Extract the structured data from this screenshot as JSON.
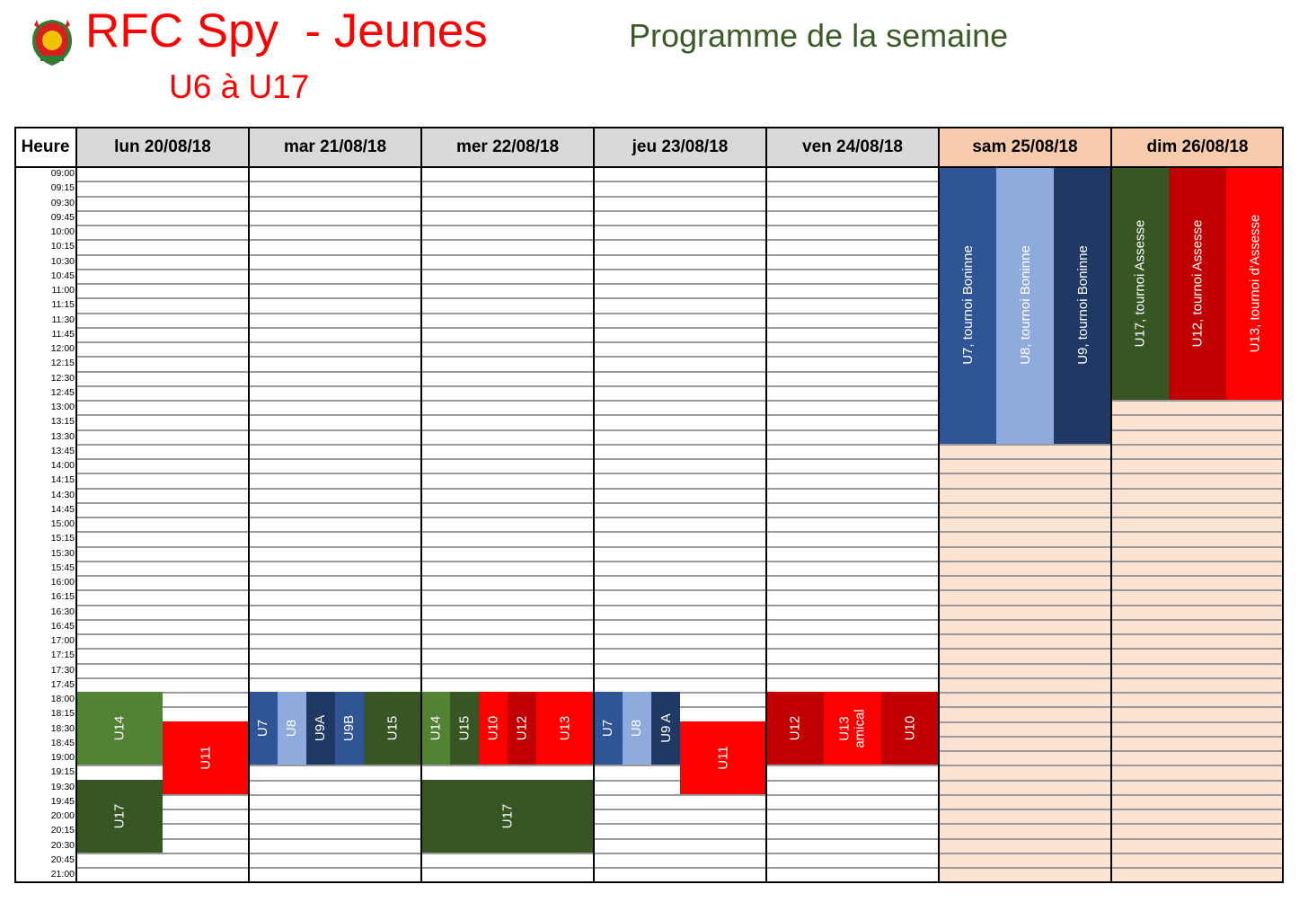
{
  "header": {
    "title": "RFC Spy  - Jeunes",
    "subtitle": "U6 à U17",
    "program": "Programme de la semaine",
    "logo": "club-crest"
  },
  "schedule": {
    "time_header": "Heure",
    "days": [
      "lun 20/08/18",
      "mar 21/08/18",
      "mer 22/08/18",
      "jeu 23/08/18",
      "ven 24/08/18",
      "sam 25/08/18",
      "dim 26/08/18"
    ],
    "weekend_days": [
      5,
      6
    ],
    "times": [
      "09:00",
      "09:15",
      "09:30",
      "09:45",
      "10:00",
      "10:15",
      "10:30",
      "10:45",
      "11:00",
      "11:15",
      "11:30",
      "11:45",
      "12:00",
      "12:15",
      "12:30",
      "12:45",
      "13:00",
      "13:15",
      "13:30",
      "13:45",
      "14:00",
      "14:15",
      "14:30",
      "14:45",
      "15:00",
      "15:15",
      "15:30",
      "15:45",
      "16:00",
      "16:15",
      "16:30",
      "16:45",
      "17:00",
      "17:15",
      "17:30",
      "17:45",
      "18:00",
      "18:15",
      "18:30",
      "18:45",
      "19:00",
      "19:15",
      "19:30",
      "19:45",
      "20:00",
      "20:15",
      "20:30",
      "20:45",
      "21:00"
    ],
    "colors": {
      "green_light": "#548235",
      "green_dark": "#375623",
      "red": "#ff0000",
      "red_dark": "#c00000",
      "blue": "#2f5597",
      "blue_light": "#8faadc",
      "navy": "#203864",
      "header_gray": "#d9d9d9",
      "header_weekend": "#f8cbad",
      "weekend_bg": "#fce3d2"
    },
    "events": [
      {
        "day": 0,
        "lane": 0,
        "lanes": 2,
        "start": "18:00",
        "end": "19:15",
        "label": "U14",
        "color": "green_light"
      },
      {
        "day": 0,
        "lane": 1,
        "lanes": 2,
        "start": "18:30",
        "end": "19:45",
        "label": "U11",
        "color": "red"
      },
      {
        "day": 0,
        "lane": 0,
        "lanes": 2,
        "start": "19:30",
        "end": "20:45",
        "label": "U17",
        "color": "green_dark"
      },
      {
        "day": 1,
        "lane": 0,
        "lanes": 6,
        "start": "18:00",
        "end": "19:15",
        "label": "U7",
        "color": "blue"
      },
      {
        "day": 1,
        "lane": 1,
        "lanes": 6,
        "start": "18:00",
        "end": "19:15",
        "label": "U8",
        "color": "blue_light"
      },
      {
        "day": 1,
        "lane": 2,
        "lanes": 6,
        "start": "18:00",
        "end": "19:15",
        "label": "U9A",
        "color": "navy"
      },
      {
        "day": 1,
        "lane": 3,
        "lanes": 6,
        "start": "18:00",
        "end": "19:15",
        "label": "U9B",
        "color": "blue"
      },
      {
        "day": 1,
        "lane": 4,
        "lanes": 6,
        "span": 2,
        "start": "18:00",
        "end": "19:15",
        "label": "U15",
        "color": "green_dark"
      },
      {
        "day": 2,
        "lane": 0,
        "lanes": 6,
        "start": "18:00",
        "end": "19:15",
        "label": "U14",
        "color": "green_light"
      },
      {
        "day": 2,
        "lane": 1,
        "lanes": 6,
        "start": "18:00",
        "end": "19:15",
        "label": "U15",
        "color": "green_dark"
      },
      {
        "day": 2,
        "lane": 2,
        "lanes": 6,
        "start": "18:00",
        "end": "19:15",
        "label": "U10",
        "color": "red"
      },
      {
        "day": 2,
        "lane": 3,
        "lanes": 6,
        "start": "18:00",
        "end": "19:15",
        "label": "U12",
        "color": "red_dark"
      },
      {
        "day": 2,
        "lane": 4,
        "lanes": 6,
        "span": 2,
        "start": "18:00",
        "end": "19:15",
        "label": "U13",
        "color": "red"
      },
      {
        "day": 2,
        "lane": 0,
        "lanes": 1,
        "start": "19:30",
        "end": "20:45",
        "label": "U17",
        "color": "green_dark"
      },
      {
        "day": 3,
        "lane": 0,
        "lanes": 6,
        "start": "18:00",
        "end": "19:15",
        "label": "U7",
        "color": "blue"
      },
      {
        "day": 3,
        "lane": 1,
        "lanes": 6,
        "start": "18:00",
        "end": "19:15",
        "label": "U8",
        "color": "blue_light"
      },
      {
        "day": 3,
        "lane": 2,
        "lanes": 6,
        "start": "18:00",
        "end": "19:15",
        "label": "U9 A",
        "color": "navy"
      },
      {
        "day": 3,
        "lane": 3,
        "lanes": 6,
        "span": 3,
        "start": "18:30",
        "end": "19:45",
        "label": "U11",
        "color": "red"
      },
      {
        "day": 4,
        "lane": 0,
        "lanes": 3,
        "start": "18:00",
        "end": "19:15",
        "label": "U12",
        "color": "red_dark"
      },
      {
        "day": 4,
        "lane": 1,
        "lanes": 3,
        "start": "18:00",
        "end": "19:15",
        "label": "U13\namical",
        "color": "red"
      },
      {
        "day": 4,
        "lane": 2,
        "lanes": 3,
        "start": "18:00",
        "end": "19:15",
        "label": "U10",
        "color": "red_dark"
      },
      {
        "day": 5,
        "lane": 0,
        "lanes": 3,
        "start": "09:00",
        "end": "13:45",
        "label": "U7, tournoi Boninne",
        "color": "blue"
      },
      {
        "day": 5,
        "lane": 1,
        "lanes": 3,
        "start": "09:00",
        "end": "13:45",
        "label": "U8, tournoi Boninne",
        "color": "blue_light"
      },
      {
        "day": 5,
        "lane": 2,
        "lanes": 3,
        "start": "09:00",
        "end": "13:45",
        "label": "U9, tournoi Boninne",
        "color": "navy"
      },
      {
        "day": 6,
        "lane": 0,
        "lanes": 3,
        "start": "09:00",
        "end": "13:00",
        "label": "U17, tournoi Assesse",
        "color": "green_dark"
      },
      {
        "day": 6,
        "lane": 1,
        "lanes": 3,
        "start": "09:00",
        "end": "13:00",
        "label": "U12, tournoi Assesse",
        "color": "red_dark"
      },
      {
        "day": 6,
        "lane": 2,
        "lanes": 3,
        "start": "09:00",
        "end": "13:00",
        "label": "U13, tournoi d'Assesse",
        "color": "red"
      }
    ]
  }
}
